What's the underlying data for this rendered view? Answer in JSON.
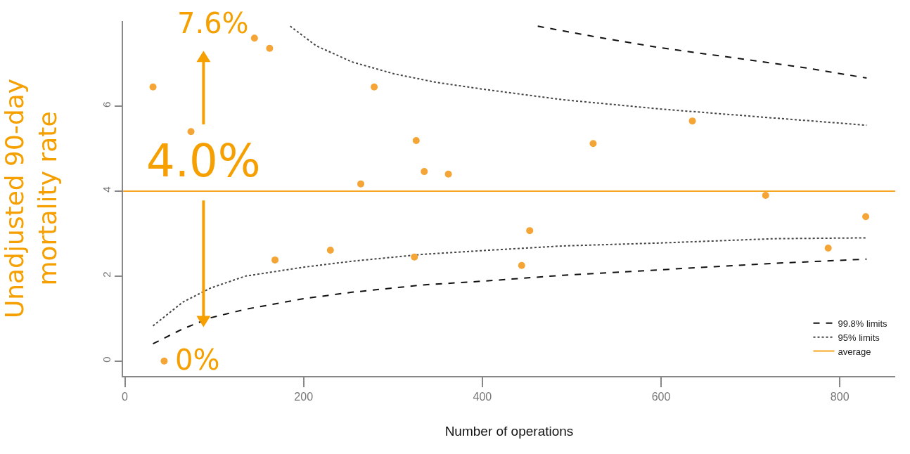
{
  "chart_data": {
    "type": "scatter",
    "xlabel": "Number of operations",
    "ylabel": "Unadjusted 90-day mortality rate",
    "x": [
      31.5,
      44,
      74,
      145,
      162,
      168,
      230,
      264,
      279,
      324,
      326,
      335,
      362,
      444,
      453,
      524,
      635,
      717,
      787,
      829
    ],
    "values": [
      6.45,
      0,
      5.4,
      7.6,
      7.36,
      2.38,
      2.61,
      4.17,
      6.45,
      2.45,
      5.19,
      4.46,
      4.4,
      2.25,
      3.07,
      5.12,
      5.65,
      3.9,
      2.66,
      3.4
    ],
    "color": "#f4a536",
    "marker": "circle",
    "series": [
      {
        "type": "line",
        "name": "99.8% limits",
        "marker": "none",
        "color": "#111111",
        "line_style": "dashed",
        "x": [
          31.5,
          65,
          96,
          135,
          200,
          254,
          332,
          400,
          490,
          600,
          726,
          830
        ],
        "values": [
          0.41,
          0.76,
          1.02,
          1.22,
          1.47,
          1.62,
          1.79,
          1.88,
          2.02,
          2.15,
          2.3,
          2.4
        ]
      },
      {
        "type": "line",
        "marker": "none",
        "color": "#111111",
        "line_style": "dashed",
        "x": [
          462,
          529,
          600,
          687,
          765,
          830
        ],
        "values": [
          7.88,
          7.62,
          7.37,
          7.12,
          6.89,
          6.66
        ]
      },
      {
        "type": "line",
        "name": "95% limits",
        "marker": "none",
        "color": "#444444",
        "line_style": "dotted",
        "x": [
          31.5,
          65,
          96,
          135,
          200,
          254,
          332,
          400,
          490,
          600,
          726,
          830
        ],
        "values": [
          0.83,
          1.39,
          1.72,
          2.0,
          2.21,
          2.35,
          2.51,
          2.6,
          2.71,
          2.78,
          2.88,
          2.9
        ]
      },
      {
        "type": "line",
        "marker": "none",
        "color": "#444444",
        "line_style": "dotted",
        "x": [
          185,
          214,
          254,
          301,
          348,
          400,
          490,
          600,
          726,
          830
        ],
        "values": [
          7.88,
          7.42,
          7.04,
          6.76,
          6.56,
          6.4,
          6.15,
          5.93,
          5.72,
          5.55
        ]
      }
    ],
    "ref_lines": [
      {
        "axis": "y",
        "value": 4.0,
        "label": "average",
        "color": "#f5a623",
        "line_style": "solid"
      }
    ],
    "annotations": [
      {
        "text": "7.6%",
        "x": 145,
        "y": 7.6
      },
      {
        "text": "4.0%",
        "x": 88,
        "y": 4.0
      },
      {
        "text": "0%",
        "x": 44,
        "y": 0
      }
    ],
    "xlim": [
      -2,
      862
    ],
    "xticks": [
      0,
      200,
      400,
      600,
      800
    ],
    "ylim": [
      -0.35,
      8
    ],
    "yticks": [
      0,
      2,
      4,
      6
    ],
    "grid": false,
    "legend": "bottom right"
  }
}
